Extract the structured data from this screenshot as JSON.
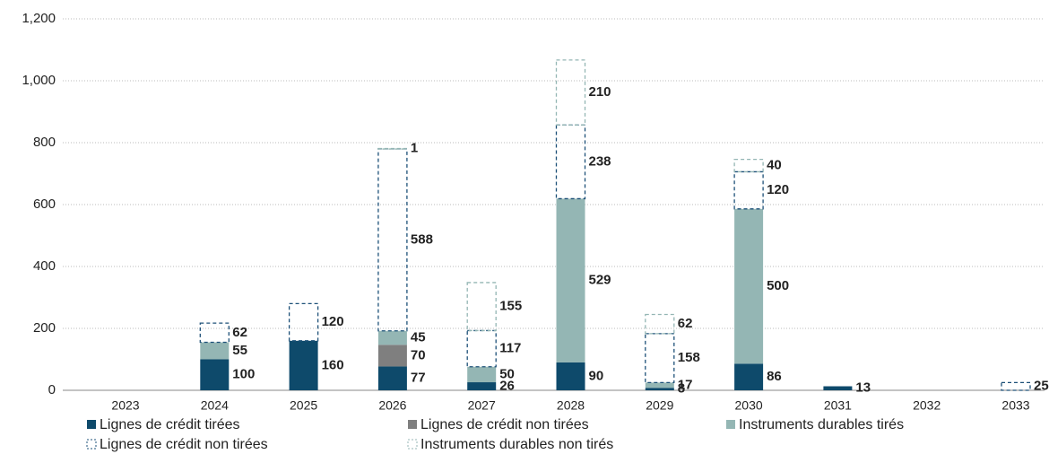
{
  "chart_data": {
    "type": "stacked_bar",
    "categories": [
      "2023",
      "2024",
      "2025",
      "2026",
      "2027",
      "2028",
      "2029",
      "2030",
      "2031",
      "2032",
      "2033"
    ],
    "series": [
      {
        "name": "Lignes de crédit tirées",
        "color": "#0e4a6b",
        "dashed": false,
        "values": [
          null,
          100,
          160,
          77,
          26,
          90,
          8,
          86,
          13,
          null,
          null
        ]
      },
      {
        "name": "Lignes de crédit non tirées",
        "color": "#7f7f7f",
        "dashed": false,
        "values": [
          null,
          null,
          null,
          70,
          null,
          null,
          null,
          null,
          null,
          null,
          null
        ]
      },
      {
        "name": "Instruments durables tirés",
        "color": "#94b6b4",
        "dashed": false,
        "values": [
          null,
          55,
          null,
          45,
          50,
          529,
          17,
          500,
          null,
          null,
          null
        ]
      },
      {
        "name": "Lignes de crédit non tirées",
        "color": "#1d5078",
        "dashed": true,
        "values": [
          null,
          62,
          120,
          588,
          117,
          238,
          158,
          120,
          null,
          null,
          25
        ]
      },
      {
        "name": "Instruments durables non tirés",
        "color": "#94b6b4",
        "dashed": true,
        "values": [
          null,
          null,
          null,
          1,
          155,
          210,
          62,
          40,
          null,
          null,
          null
        ]
      }
    ],
    "ylim": [
      0,
      1200
    ],
    "yticks": [
      0,
      200,
      400,
      600,
      800,
      {
        "value": 1000,
        "label": "1,000"
      },
      {
        "value": 1200,
        "label": "1,200"
      }
    ],
    "grid": true
  }
}
